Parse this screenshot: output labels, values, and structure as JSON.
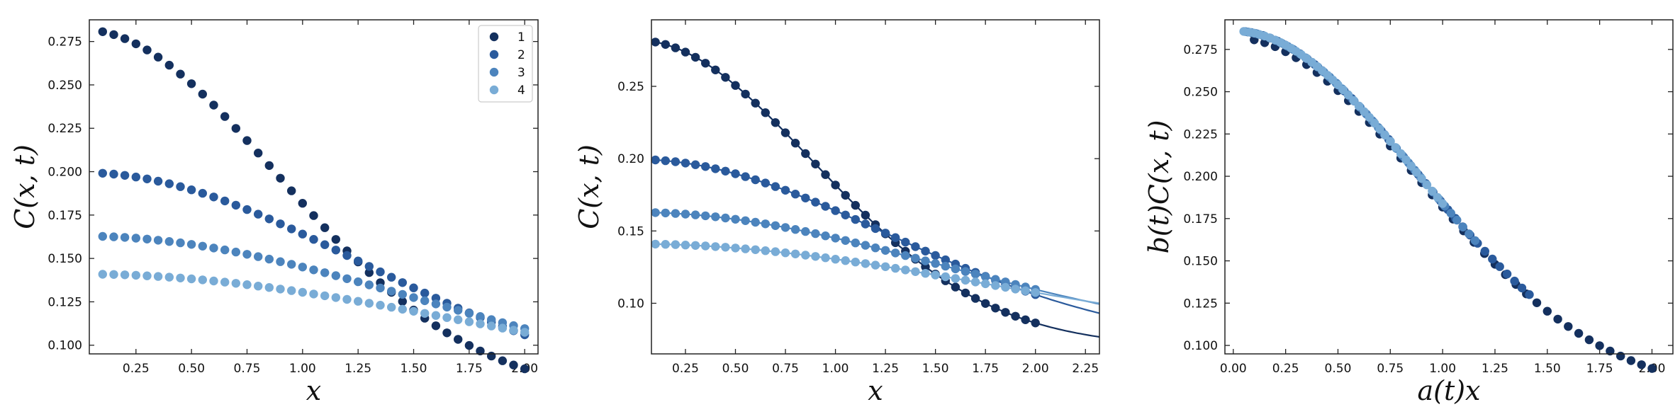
{
  "colors": {
    "series": [
      "#14305e",
      "#2a5a9c",
      "#4c84bd",
      "#79acd6"
    ],
    "axis": "#222222"
  },
  "chart_data": [
    {
      "type": "scatter",
      "title": "",
      "xlabel": "x",
      "ylabel": "C(x, t)",
      "xlim": [
        0.04,
        2.06
      ],
      "ylim": [
        0.095,
        0.2875
      ],
      "xticks": [
        0.25,
        0.5,
        0.75,
        1.0,
        1.25,
        1.5,
        1.75,
        2.0
      ],
      "xtick_labels": [
        "0.25",
        "0.50",
        "0.75",
        "1.00",
        "1.25",
        "1.50",
        "1.75",
        "2.00"
      ],
      "yticks": [
        0.1,
        0.125,
        0.15,
        0.175,
        0.2,
        0.225,
        0.25,
        0.275
      ],
      "ytick_labels": [
        "0.100",
        "0.125",
        "0.150",
        "0.175",
        "0.200",
        "0.225",
        "0.250",
        "0.275"
      ],
      "legend": {
        "placement": "top-right",
        "entries": [
          "1",
          "2",
          "3",
          "4"
        ]
      },
      "x": {
        "start": 0.1,
        "stop": 2.0,
        "count": 39
      },
      "series": [
        {
          "name": "1",
          "model": {
            "amplitude": 0.282,
            "floor": 0.07,
            "width": 1.25,
            "x_scale": 1.0
          }
        },
        {
          "name": "2",
          "model": {
            "amplitude": 0.1995,
            "floor": 0.07,
            "width": 1.25,
            "x_scale": 0.7071
          }
        },
        {
          "name": "3",
          "model": {
            "amplitude": 0.1629,
            "floor": 0.07,
            "width": 1.25,
            "x_scale": 0.5774
          }
        },
        {
          "name": "4",
          "model": {
            "amplitude": 0.141,
            "floor": 0.07,
            "width": 1.25,
            "x_scale": 0.5
          }
        }
      ]
    },
    {
      "type": "scatter",
      "title": "",
      "xlabel": "x",
      "ylabel": "C(x, t)",
      "xlim": [
        0.08,
        2.32
      ],
      "ylim": [
        0.065,
        0.296
      ],
      "xticks": [
        0.25,
        0.5,
        0.75,
        1.0,
        1.25,
        1.5,
        1.75,
        2.0,
        2.25
      ],
      "xtick_labels": [
        "0.25",
        "0.50",
        "0.75",
        "1.00",
        "1.25",
        "1.50",
        "1.75",
        "2.00",
        "2.25"
      ],
      "yticks": [
        0.1,
        0.15,
        0.2,
        0.25
      ],
      "ytick_labels": [
        "0.10",
        "0.15",
        "0.20",
        "0.25"
      ],
      "fit_lines": {
        "x_range": [
          0.08,
          2.32
        ]
      },
      "x": {
        "start": 0.1,
        "stop": 2.0,
        "count": 39
      },
      "series": [
        {
          "name": "1",
          "model": {
            "amplitude": 0.282,
            "floor": 0.07,
            "width": 1.25,
            "x_scale": 1.0
          }
        },
        {
          "name": "2",
          "model": {
            "amplitude": 0.1995,
            "floor": 0.07,
            "width": 1.25,
            "x_scale": 0.7071
          }
        },
        {
          "name": "3",
          "model": {
            "amplitude": 0.1629,
            "floor": 0.07,
            "width": 1.25,
            "x_scale": 0.5774
          }
        },
        {
          "name": "4",
          "model": {
            "amplitude": 0.141,
            "floor": 0.07,
            "width": 1.25,
            "x_scale": 0.5
          }
        }
      ]
    },
    {
      "type": "scatter",
      "title": "",
      "xlabel": "a(t)x",
      "ylabel": "b(t)C(x, t)",
      "xlim": [
        -0.04,
        2.1
      ],
      "ylim": [
        0.095,
        0.2925
      ],
      "xticks": [
        0.0,
        0.25,
        0.5,
        0.75,
        1.0,
        1.25,
        1.5,
        1.75,
        2.0
      ],
      "xtick_labels": [
        "0.00",
        "0.25",
        "0.50",
        "0.75",
        "1.00",
        "1.25",
        "1.50",
        "1.75",
        "2.00"
      ],
      "yticks": [
        0.1,
        0.125,
        0.15,
        0.175,
        0.2,
        0.225,
        0.25,
        0.275
      ],
      "ytick_labels": [
        "0.100",
        "0.125",
        "0.150",
        "0.175",
        "0.200",
        "0.225",
        "0.250",
        "0.275"
      ],
      "collapse": {
        "amplitude": 0.286,
        "floor": 0.07,
        "width": 1.25
      },
      "x": {
        "start": 0.1,
        "stop": 2.0,
        "count": 39
      },
      "series": [
        {
          "name": "1",
          "scaled_x_factor": 1.0,
          "y_factor": 1.0
        },
        {
          "name": "2",
          "scaled_x_factor": 0.7071,
          "y_factor": 1.435
        },
        {
          "name": "3",
          "scaled_x_factor": 0.5774,
          "y_factor": 1.757
        },
        {
          "name": "4",
          "scaled_x_factor": 0.5,
          "y_factor": 2.03
        }
      ]
    }
  ]
}
